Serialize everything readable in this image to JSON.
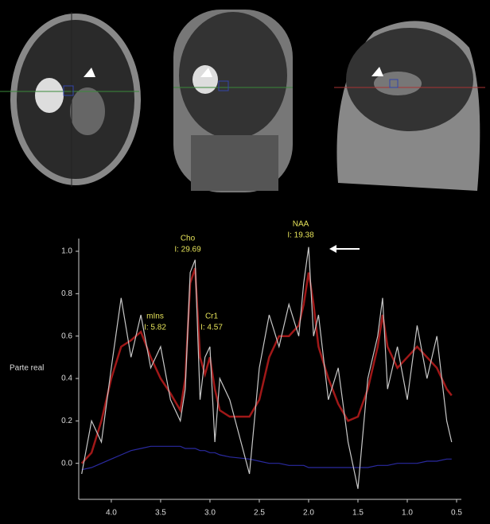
{
  "chart_data": {
    "type": "line",
    "y_label": "Parte real",
    "x": [
      4.3,
      4.2,
      4.1,
      4.0,
      3.9,
      3.8,
      3.7,
      3.6,
      3.5,
      3.4,
      3.3,
      3.25,
      3.2,
      3.15,
      3.1,
      3.05,
      3.0,
      2.95,
      2.9,
      2.8,
      2.6,
      2.5,
      2.4,
      2.3,
      2.2,
      2.1,
      2.05,
      2.0,
      1.95,
      1.9,
      1.8,
      1.7,
      1.6,
      1.5,
      1.4,
      1.3,
      1.25,
      1.2,
      1.1,
      1.0,
      0.9,
      0.8,
      0.7,
      0.6,
      0.55
    ],
    "series": [
      {
        "color": "#c8c8c8",
        "values": [
          -0.05,
          0.2,
          0.1,
          0.45,
          0.78,
          0.5,
          0.7,
          0.45,
          0.55,
          0.3,
          0.2,
          0.35,
          0.9,
          0.96,
          0.3,
          0.5,
          0.55,
          0.1,
          0.4,
          0.3,
          -0.05,
          0.45,
          0.7,
          0.55,
          0.75,
          0.6,
          0.85,
          1.02,
          0.6,
          0.7,
          0.3,
          0.45,
          0.1,
          -0.12,
          0.4,
          0.6,
          0.78,
          0.35,
          0.55,
          0.3,
          0.65,
          0.4,
          0.6,
          0.2,
          0.1
        ]
      },
      {
        "color": "#a01818",
        "values": [
          0.0,
          0.05,
          0.2,
          0.4,
          0.55,
          0.58,
          0.62,
          0.5,
          0.4,
          0.33,
          0.25,
          0.4,
          0.85,
          0.92,
          0.5,
          0.42,
          0.5,
          0.35,
          0.25,
          0.22,
          0.22,
          0.3,
          0.5,
          0.6,
          0.6,
          0.65,
          0.75,
          0.9,
          0.75,
          0.55,
          0.4,
          0.28,
          0.2,
          0.22,
          0.35,
          0.55,
          0.7,
          0.55,
          0.45,
          0.5,
          0.55,
          0.5,
          0.45,
          0.35,
          0.32
        ]
      },
      {
        "color": "#2a2aa0",
        "values": [
          -0.03,
          -0.02,
          0.0,
          0.02,
          0.04,
          0.06,
          0.07,
          0.08,
          0.08,
          0.08,
          0.08,
          0.07,
          0.07,
          0.07,
          0.06,
          0.06,
          0.05,
          0.05,
          0.04,
          0.03,
          0.02,
          0.01,
          0.0,
          0.0,
          -0.01,
          -0.01,
          -0.01,
          -0.02,
          -0.02,
          -0.02,
          -0.02,
          -0.02,
          -0.02,
          -0.02,
          -0.02,
          -0.01,
          -0.01,
          -0.01,
          0.0,
          0.0,
          0.0,
          0.01,
          0.01,
          0.02,
          0.02
        ]
      }
    ],
    "annotations": [
      {
        "name": "mIns",
        "integral": "I: 5.82"
      },
      {
        "name": "Cho",
        "integral": "I: 29.69"
      },
      {
        "name": "Cr1",
        "integral": "I: 4.57"
      },
      {
        "name": "NAA",
        "integral": "I: 19.38"
      }
    ],
    "xlim": [
      4.33,
      0.5
    ],
    "ylim": [
      -0.17,
      1.06
    ],
    "xticks": [
      {
        "value": 4.0,
        "label": "4.0"
      },
      3.5,
      {
        "value": 3.0,
        "label": "3.0"
      },
      2.5,
      {
        "value": 2.0,
        "label": "2.0"
      },
      1.5,
      {
        "value": 1.0,
        "label": "1.0"
      },
      0.5
    ],
    "yticks": [
      {
        "value": 0.0,
        "label": "0.0"
      },
      0.2,
      0.4,
      0.6,
      0.8,
      {
        "value": 1.0,
        "label": "1.0"
      }
    ]
  }
}
